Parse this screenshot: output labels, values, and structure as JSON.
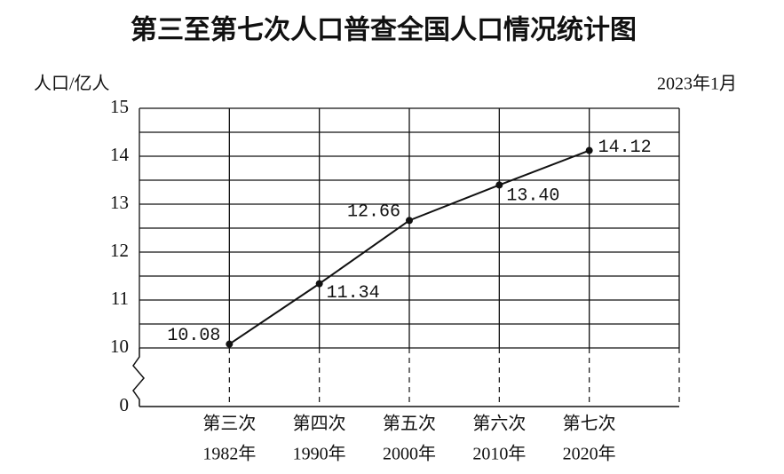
{
  "chart_data": {
    "type": "line",
    "title": "第三至第七次人口普查全国人口情况统计图",
    "y_label": "人口/亿人",
    "date_note": "2023年1月",
    "categories": [
      [
        "第三次",
        "1982年"
      ],
      [
        "第四次",
        "1990年"
      ],
      [
        "第五次",
        "2000年"
      ],
      [
        "第六次",
        "2010年"
      ],
      [
        "第七次",
        "2020年"
      ]
    ],
    "values": [
      10.08,
      11.34,
      12.66,
      13.4,
      14.12
    ],
    "value_labels": [
      "10.08",
      "11.34",
      "12.66",
      "13.40",
      "14.12"
    ],
    "color": "#111111",
    "ylim": [
      0,
      15
    ],
    "axis_break": [
      0,
      10
    ],
    "yticks": [
      0,
      10,
      11,
      12,
      13,
      14,
      15
    ],
    "minor_yticks": [
      10.5,
      11.5,
      12.5,
      13.5,
      14.5
    ],
    "grid": true
  }
}
